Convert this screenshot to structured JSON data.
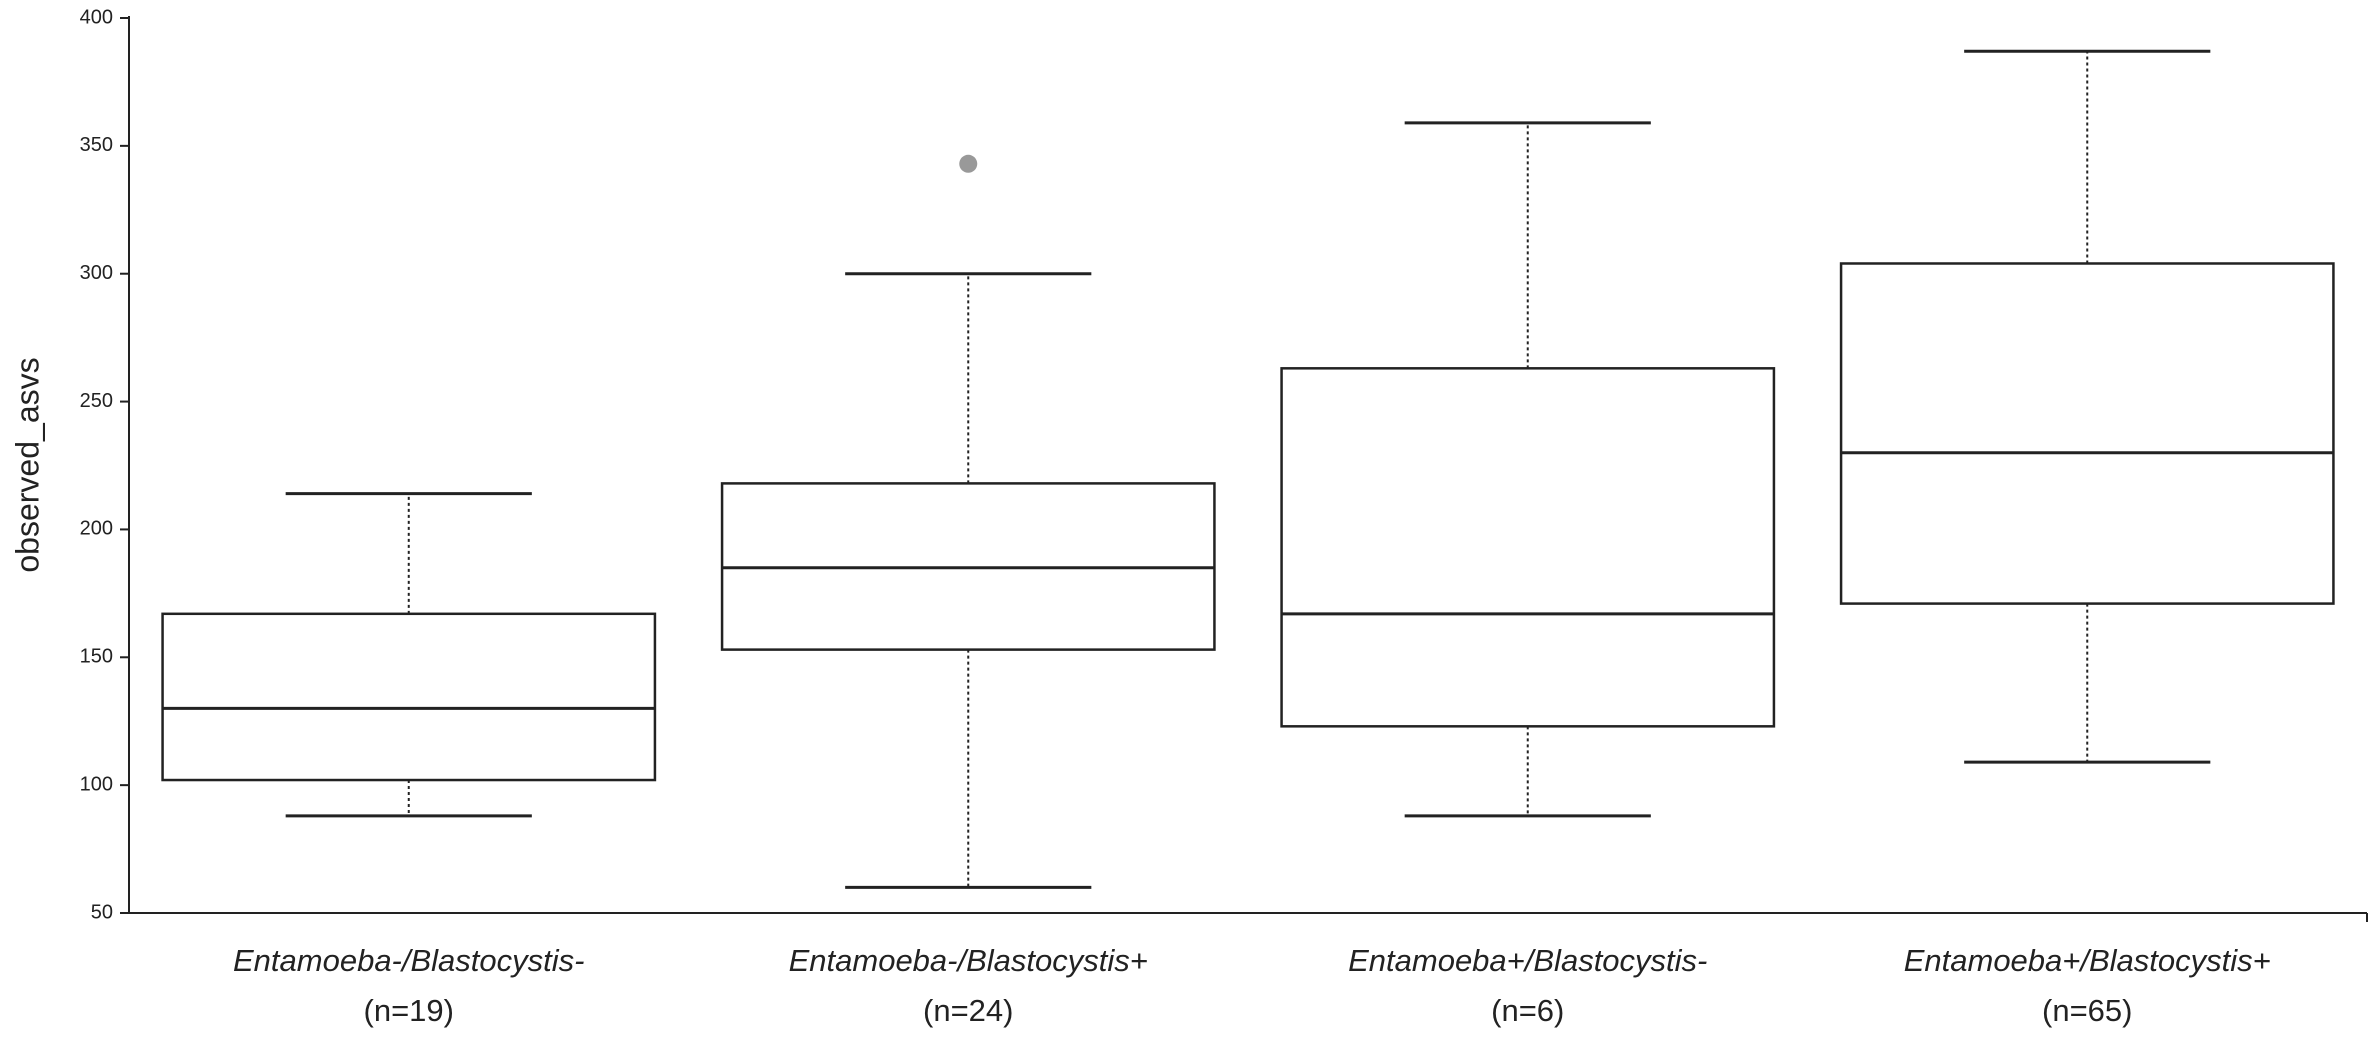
{
  "chart_data": {
    "type": "box",
    "y_label": "observed_asvs",
    "categories": [
      "Entamoeba-/Blastocystis-",
      "Entamoeba-/Blastocystis+",
      "Entamoeba+/Blastocystis-",
      "Entamoeba+/Blastocystis+"
    ],
    "category_notes": [
      "(n=19)",
      "(n=24)",
      "(n=6)",
      "(n=65)"
    ],
    "whisker_low": [
      88,
      60,
      88,
      109
    ],
    "q1": [
      102,
      153,
      123,
      171
    ],
    "median": [
      130,
      185,
      167,
      230
    ],
    "q3": [
      167,
      218,
      263,
      304
    ],
    "whisker_high": [
      214,
      300,
      359,
      387
    ],
    "outliers": [
      [],
      [
        343
      ],
      [],
      []
    ],
    "color": "#222222",
    "outlier_color": "#999999",
    "ylim": [
      50,
      400
    ],
    "yticks": [
      50,
      100,
      150,
      200,
      250,
      300,
      350,
      400
    ]
  }
}
